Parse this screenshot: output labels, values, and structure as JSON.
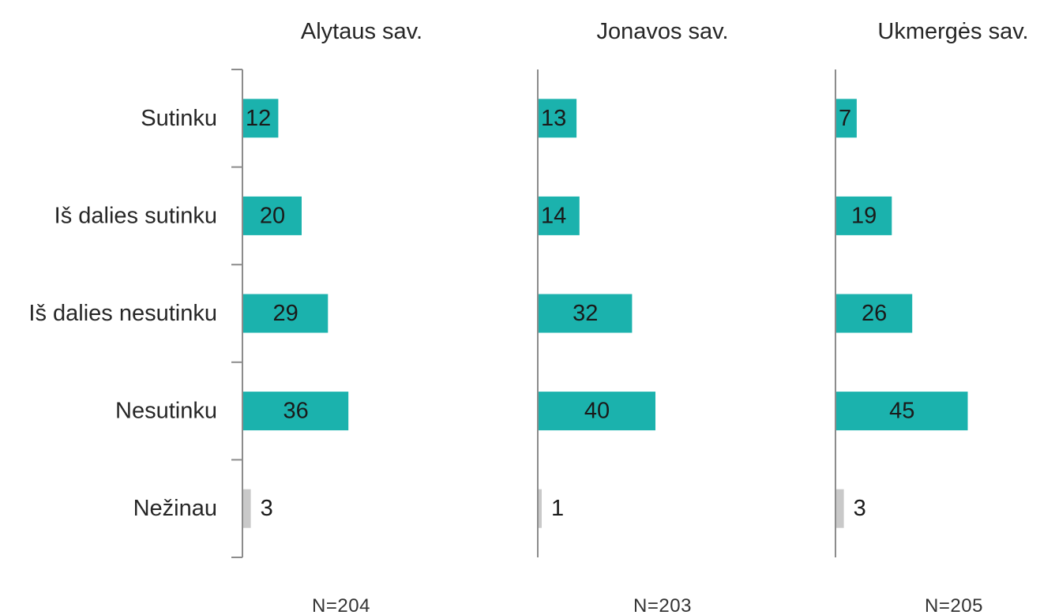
{
  "chart_data": {
    "type": "bar",
    "orientation": "horizontal",
    "categories": [
      "Sutinku",
      "Iš dalies sutinku",
      "Iš dalies nesutinku",
      "Nesutinku",
      "Nežinau"
    ],
    "panels": [
      {
        "title": "Alytaus sav.",
        "n_label": "N=204",
        "values": [
          12,
          20,
          29,
          36,
          3
        ]
      },
      {
        "title": "Jonavos sav.",
        "n_label": "N=203",
        "values": [
          13,
          14,
          32,
          40,
          1
        ]
      },
      {
        "title": "Ukmergės sav.",
        "n_label": "N=205",
        "values": [
          7,
          19,
          26,
          45,
          3
        ]
      }
    ],
    "category_colors": [
      "#1bb2ad",
      "#1bb2ad",
      "#1bb2ad",
      "#1bb2ad",
      "#c9c9c9"
    ],
    "axis_color": "#8c8c8c",
    "grid": false,
    "legend": "none"
  }
}
